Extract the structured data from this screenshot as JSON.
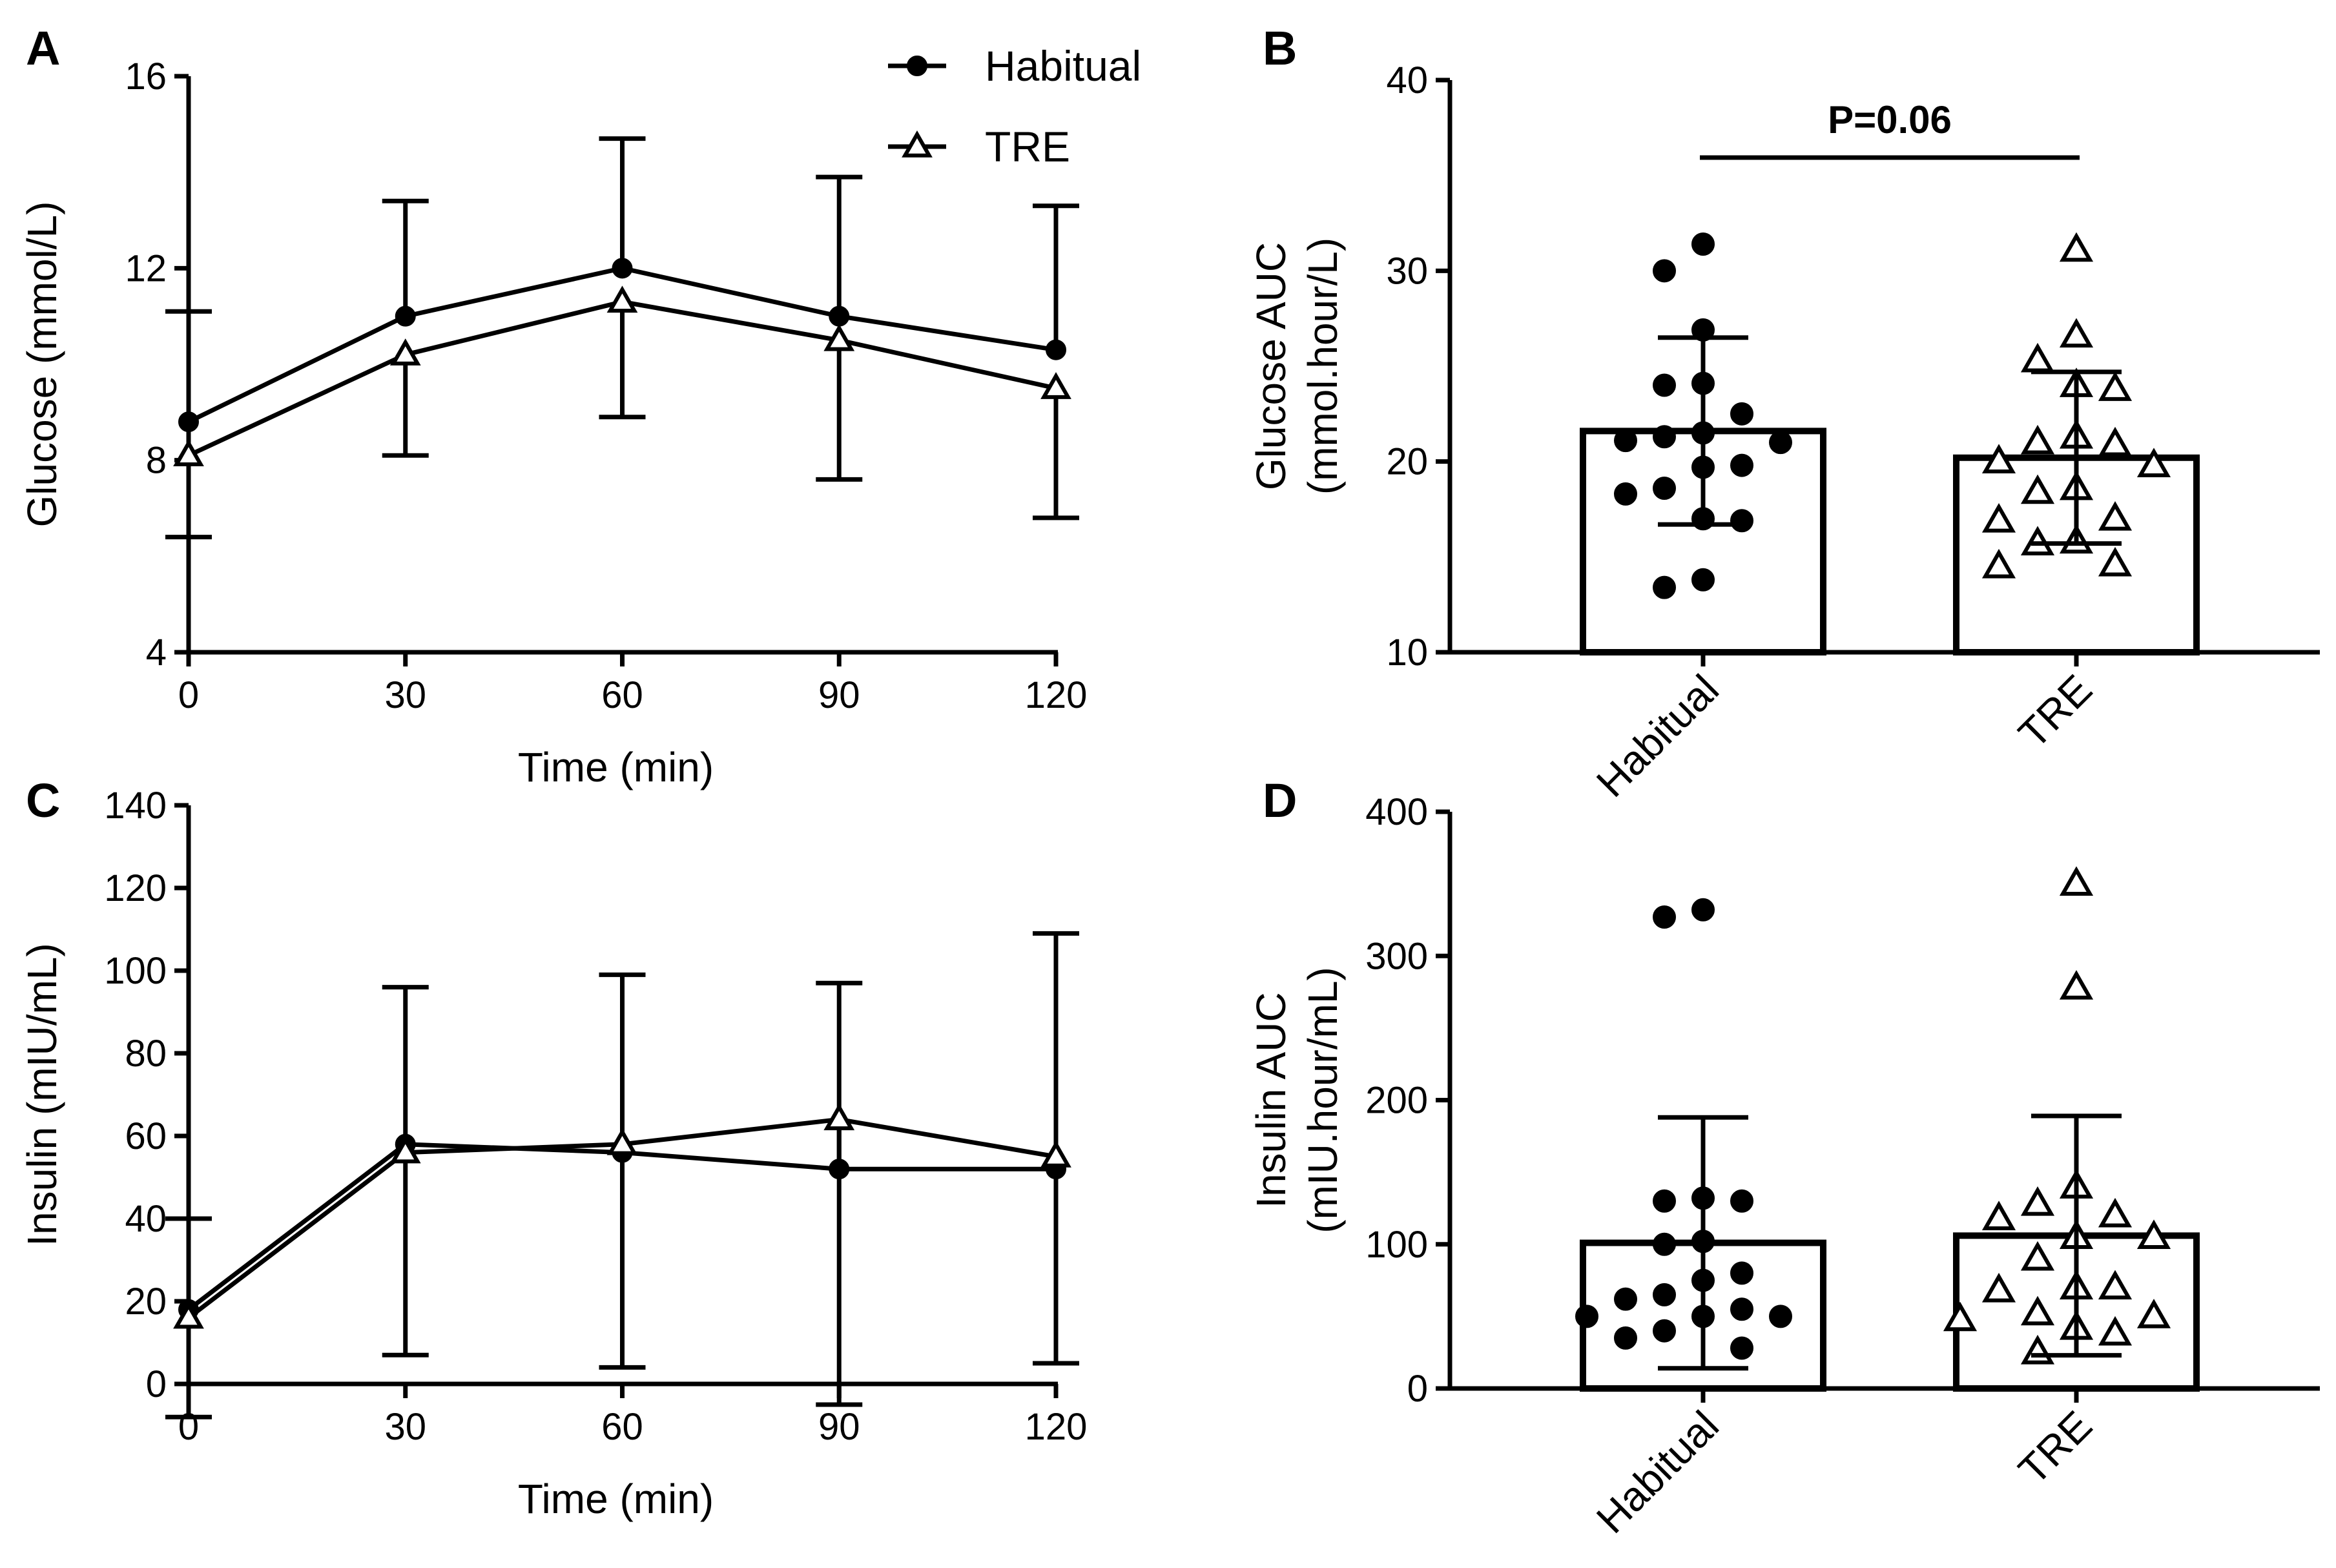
{
  "chart_data": [
    {
      "panel": "A",
      "type": "line",
      "xlabel": "Time (min)",
      "ylabel": "Glucose (mmol/L)",
      "x": [
        0,
        30,
        60,
        90,
        120
      ],
      "xticks": [
        "0",
        "30",
        "60",
        "90",
        "120"
      ],
      "xlim": [
        0,
        120
      ],
      "ylim": [
        4,
        16
      ],
      "yticks": [
        "4",
        "8",
        "12",
        "16"
      ],
      "legend": {
        "placement": "top-right",
        "entries": [
          "Habitual",
          "TRE"
        ]
      },
      "series": [
        {
          "name": "Habitual",
          "marker": "filled-circle",
          "values": [
            8.8,
            11.0,
            12.0,
            11.0,
            10.3
          ],
          "sd": [
            2.3,
            2.4,
            2.7,
            2.9,
            3.0
          ]
        },
        {
          "name": "TRE",
          "marker": "open-triangle",
          "values": [
            8.1,
            10.2,
            11.3,
            10.5,
            9.5
          ],
          "sd": [
            1.7,
            2.1,
            2.4,
            2.9,
            2.7
          ]
        }
      ]
    },
    {
      "panel": "B",
      "type": "bar",
      "ylabel": "Glucose AUC",
      "ylabel2": "(mmol.hour/L)",
      "categories": [
        "Habitual",
        "TRE"
      ],
      "values": [
        21.6,
        20.2
      ],
      "sd": [
        4.9,
        4.5
      ],
      "ylim": [
        10,
        40
      ],
      "yticks": [
        "10",
        "20",
        "30",
        "40"
      ],
      "annotation": "P=0.06",
      "points": [
        [
          31.4,
          30.0,
          26.9,
          24.1,
          24.0,
          22.5,
          21.5,
          21.3,
          21.1,
          21.0,
          19.8,
          19.7,
          18.6,
          18.3,
          17.0,
          16.9,
          13.8,
          13.4
        ],
        [
          31.1,
          26.6,
          25.3,
          24.0,
          23.8,
          21.3,
          21.0,
          20.9,
          20.0,
          19.8,
          18.6,
          18.4,
          17.0,
          16.9,
          15.8,
          15.7,
          14.6,
          14.5
        ]
      ]
    },
    {
      "panel": "C",
      "type": "line",
      "xlabel": "Time (min)",
      "ylabel": "Insulin (mIU/mL)",
      "x": [
        0,
        30,
        60,
        90,
        120
      ],
      "xticks": [
        "0",
        "30",
        "60",
        "90",
        "120"
      ],
      "xlim": [
        0,
        120
      ],
      "ylim": [
        0,
        140
      ],
      "yticks": [
        "0",
        "20",
        "40",
        "60",
        "80",
        "100",
        "120",
        "140"
      ],
      "series": [
        {
          "name": "Habitual",
          "marker": "filled-circle",
          "values": [
            18,
            58,
            56,
            52,
            52
          ],
          "sd": [
            22,
            38,
            43,
            45,
            57
          ]
        },
        {
          "name": "TRE",
          "marker": "open-triangle",
          "values": [
            16,
            56,
            58,
            64,
            55
          ],
          "sd": [
            24,
            49,
            54,
            69,
            50
          ]
        }
      ]
    },
    {
      "panel": "D",
      "type": "bar",
      "ylabel": "Insulin AUC",
      "ylabel2": "(mIU.hour/mL)",
      "categories": [
        "Habitual",
        "TRE"
      ],
      "values": [
        101,
        106
      ],
      "sd": [
        87,
        83
      ],
      "ylim": [
        0,
        400
      ],
      "yticks": [
        "0",
        "100",
        "200",
        "300",
        "400"
      ],
      "points": [
        [
          332,
          327,
          132,
          130,
          130,
          102,
          100,
          80,
          75,
          65,
          62,
          55,
          50,
          50,
          50,
          40,
          35,
          28
        ],
        [
          350,
          278,
          140,
          128,
          120,
          118,
          105,
          105,
          90,
          70,
          70,
          68,
          52,
          50,
          48,
          42,
          38,
          25
        ]
      ]
    }
  ]
}
